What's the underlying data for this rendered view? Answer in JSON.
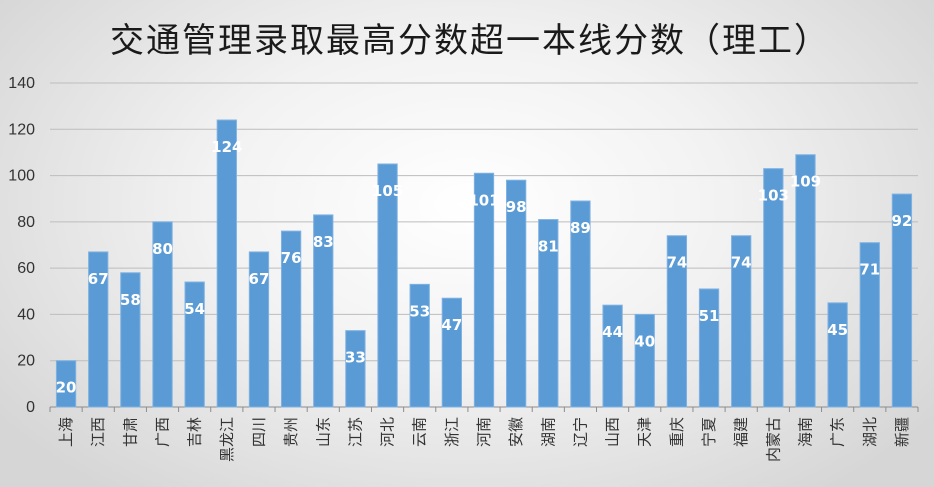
{
  "chart_data": {
    "type": "bar",
    "title": "交通管理录取最高分数超一本线分数（理工）",
    "categories": [
      "上海",
      "江西",
      "甘肃",
      "广西",
      "吉林",
      "黑龙江",
      "四川",
      "贵州",
      "山东",
      "江苏",
      "河北",
      "云南",
      "浙江",
      "河南",
      "安徽",
      "湖南",
      "辽宁",
      "山西",
      "天津",
      "重庆",
      "宁夏",
      "福建",
      "内蒙古",
      "海南",
      "广东",
      "湖北",
      "新疆"
    ],
    "values": [
      20,
      67,
      58,
      80,
      54,
      124,
      67,
      76,
      83,
      33,
      105,
      53,
      47,
      101,
      98,
      81,
      89,
      44,
      40,
      74,
      51,
      74,
      103,
      109,
      45,
      71,
      92
    ],
    "ylim": [
      0,
      140
    ],
    "yticks": [
      0,
      20,
      40,
      60,
      80,
      100,
      120,
      140
    ],
    "grid": true,
    "legend": "none",
    "bar_color": "#5b9bd5",
    "gridline_color": "#bdbdbd"
  }
}
